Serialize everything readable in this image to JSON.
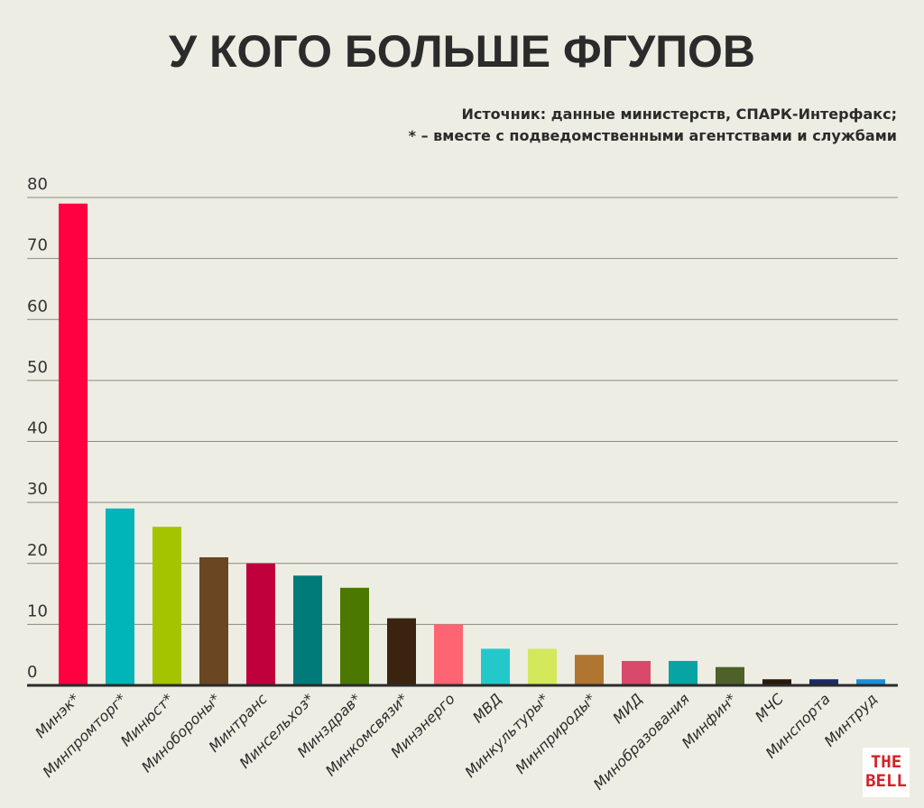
{
  "title": "У КОГО БОЛЬШЕ ФГУПОВ",
  "source_line1": "Источник: данные министерств, СПАРК-Интерфакс;",
  "source_line2": "* – вместе с подведомственными агентствами и службами",
  "logo": "THE BELL",
  "chart_data": {
    "type": "bar",
    "title": "У КОГО БОЛЬШЕ ФГУПОВ",
    "xlabel": "",
    "ylabel": "",
    "ylim": [
      0,
      80
    ],
    "yticks": [
      0,
      10,
      20,
      30,
      40,
      50,
      60,
      70,
      80
    ],
    "grid": true,
    "categories": [
      "Минэк*",
      "Минпромторг*",
      "Минюст*",
      "Минобороны*",
      "Минтранс",
      "Минсельхоз*",
      "Минздрав*",
      "Минкомсвязи*",
      "Минэнерго",
      "МВД",
      "Минкультуры*",
      "Минприроды*",
      "МИД",
      "Минобразования",
      "Минфин*",
      "МЧС",
      "Минспорта",
      "Минтруд"
    ],
    "values": [
      79,
      29,
      26,
      21,
      20,
      18,
      16,
      11,
      10,
      6,
      6,
      5,
      4,
      4,
      3,
      1,
      1,
      1
    ],
    "colors": [
      "#ff0040",
      "#00b5b8",
      "#a4c400",
      "#6b4623",
      "#c0003c",
      "#007b7a",
      "#4a7800",
      "#3a2410",
      "#ff6473",
      "#23c8cb",
      "#d4e85c",
      "#b07530",
      "#d9496b",
      "#08a3a3",
      "#4d6128",
      "#2a1a0a",
      "#1a2a6a",
      "#1a8fd8"
    ]
  }
}
